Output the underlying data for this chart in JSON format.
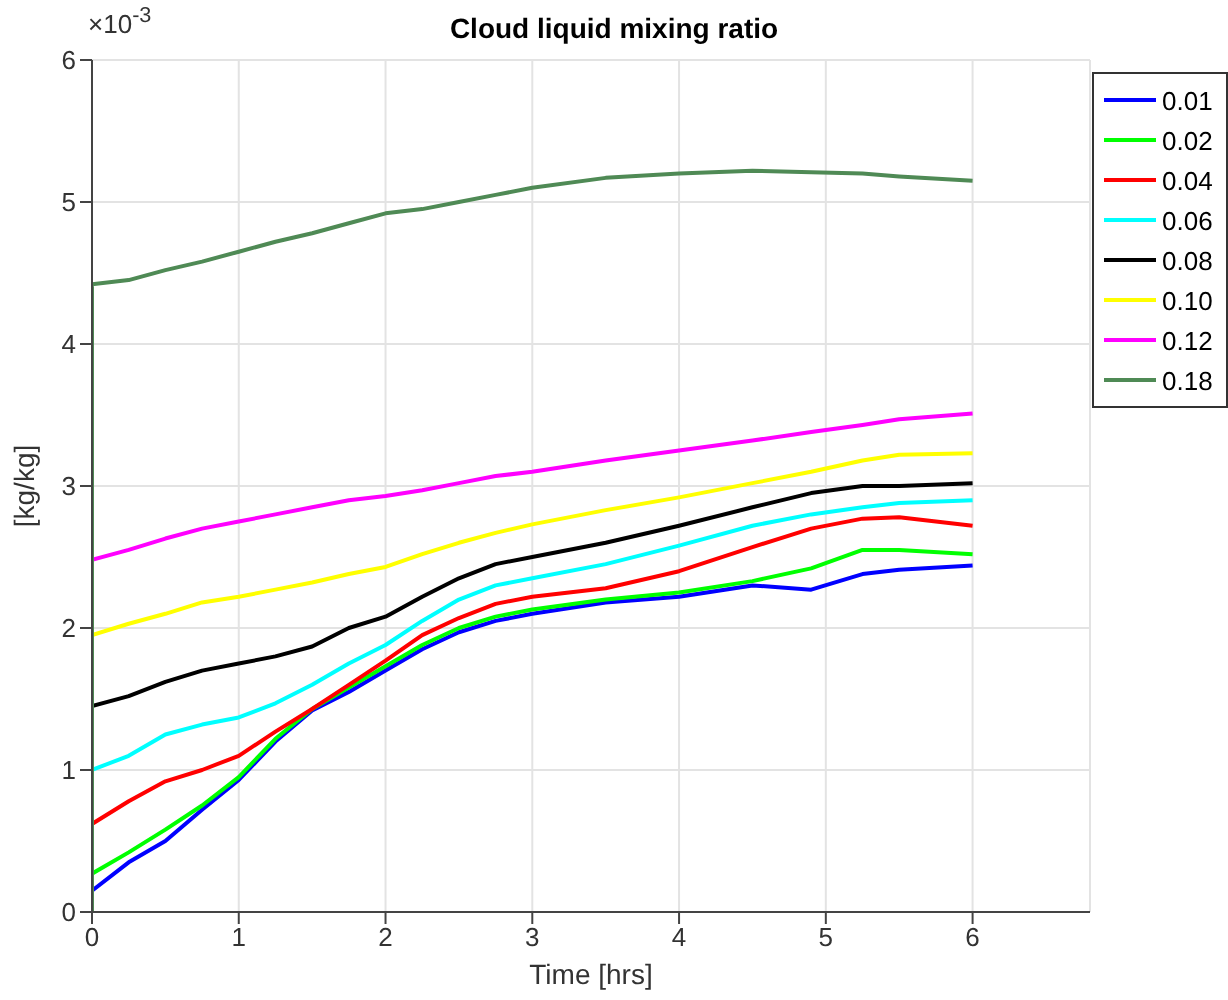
{
  "chart_data": {
    "type": "line",
    "title": "Cloud liquid mixing ratio",
    "xlabel": "Time [hrs]",
    "ylabel": "[kg/kg]",
    "annotations": [
      "×10$^{-3}$"
    ],
    "x": [
      0,
      0,
      0.25,
      0.5,
      0.75,
      1,
      1.25,
      1.5,
      1.75,
      2,
      2.25,
      2.5,
      2.75,
      3,
      3.5,
      4,
      4.5,
      4.9,
      5.25,
      5.5,
      6
    ],
    "series": [
      {
        "name": "0.01",
        "color": "#0000ff",
        "values": [
          0,
          0.15,
          0.35,
          0.5,
          0.72,
          0.93,
          1.2,
          1.42,
          1.55,
          1.7,
          1.85,
          1.97,
          2.05,
          2.1,
          2.18,
          2.22,
          2.3,
          2.27,
          2.38,
          2.41,
          2.44
        ]
      },
      {
        "name": "0.02",
        "color": "#00ff00",
        "values": [
          0,
          0.27,
          0.42,
          0.58,
          0.75,
          0.95,
          1.22,
          1.43,
          1.58,
          1.73,
          1.88,
          2.0,
          2.08,
          2.13,
          2.2,
          2.25,
          2.33,
          2.42,
          2.55,
          2.55,
          2.52
        ]
      },
      {
        "name": "0.04",
        "color": "#ff0000",
        "values": [
          0,
          0.62,
          0.78,
          0.92,
          1.0,
          1.1,
          1.27,
          1.43,
          1.6,
          1.77,
          1.95,
          2.07,
          2.17,
          2.22,
          2.28,
          2.4,
          2.57,
          2.7,
          2.77,
          2.78,
          2.72
        ]
      },
      {
        "name": "0.06",
        "color": "#00ffff",
        "values": [
          0,
          1.0,
          1.1,
          1.25,
          1.32,
          1.37,
          1.47,
          1.6,
          1.75,
          1.88,
          2.05,
          2.2,
          2.3,
          2.35,
          2.45,
          2.58,
          2.72,
          2.8,
          2.85,
          2.88,
          2.9
        ]
      },
      {
        "name": "0.08",
        "color": "#000000",
        "values": [
          0,
          1.45,
          1.52,
          1.62,
          1.7,
          1.75,
          1.8,
          1.87,
          2.0,
          2.08,
          2.22,
          2.35,
          2.45,
          2.5,
          2.6,
          2.72,
          2.85,
          2.95,
          3.0,
          3.0,
          3.02
        ]
      },
      {
        "name": "0.10",
        "color": "#ffff00",
        "values": [
          0,
          1.95,
          2.03,
          2.1,
          2.18,
          2.22,
          2.27,
          2.32,
          2.38,
          2.43,
          2.52,
          2.6,
          2.67,
          2.73,
          2.83,
          2.92,
          3.02,
          3.1,
          3.18,
          3.22,
          3.23
        ]
      },
      {
        "name": "0.12",
        "color": "#ff00ff",
        "values": [
          0,
          2.48,
          2.55,
          2.63,
          2.7,
          2.75,
          2.8,
          2.85,
          2.9,
          2.93,
          2.97,
          3.02,
          3.07,
          3.1,
          3.18,
          3.25,
          3.32,
          3.38,
          3.43,
          3.47,
          3.51
        ]
      },
      {
        "name": "0.18",
        "color": "#4f8a55",
        "values": [
          0,
          4.42,
          4.45,
          4.52,
          4.58,
          4.65,
          4.72,
          4.78,
          4.85,
          4.92,
          4.95,
          5.0,
          5.05,
          5.1,
          5.17,
          5.2,
          5.22,
          5.21,
          5.2,
          5.18,
          5.15
        ]
      }
    ],
    "xlim": [
      0,
      6.8
    ],
    "xticks": [
      0,
      1,
      2,
      3,
      4,
      5,
      6
    ],
    "ylim": [
      0,
      6
    ],
    "yticks": [
      0,
      1,
      2,
      3,
      4,
      5,
      6
    ],
    "grid": true,
    "legend": "top right",
    "marker": "none",
    "line_style": "solid"
  }
}
